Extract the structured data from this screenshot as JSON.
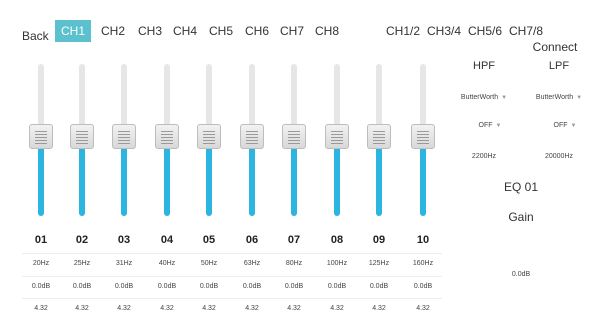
{
  "nav": {
    "back_label": "Back",
    "connect_label": "Connect"
  },
  "tabs": [
    "CH1",
    "CH2",
    "CH3",
    "CH4",
    "CH5",
    "CH6",
    "CH7",
    "CH8",
    "CH1/2",
    "CH3/4",
    "CH5/6",
    "CH7/8"
  ],
  "active_tab": "CH1",
  "bands": [
    {
      "num": "01",
      "freq": "20Hz",
      "gain": "0.0dB",
      "q": "4.32",
      "level": 0.52
    },
    {
      "num": "02",
      "freq": "25Hz",
      "gain": "0.0dB",
      "q": "4.32",
      "level": 0.52
    },
    {
      "num": "03",
      "freq": "31Hz",
      "gain": "0.0dB",
      "q": "4.32",
      "level": 0.52
    },
    {
      "num": "04",
      "freq": "40Hz",
      "gain": "0.0dB",
      "q": "4.32",
      "level": 0.52
    },
    {
      "num": "05",
      "freq": "50Hz",
      "gain": "0.0dB",
      "q": "4.32",
      "level": 0.52
    },
    {
      "num": "06",
      "freq": "63Hz",
      "gain": "0.0dB",
      "q": "4.32",
      "level": 0.52
    },
    {
      "num": "07",
      "freq": "80Hz",
      "gain": "0.0dB",
      "q": "4.32",
      "level": 0.52
    },
    {
      "num": "08",
      "freq": "100Hz",
      "gain": "0.0dB",
      "q": "4.32",
      "level": 0.52
    },
    {
      "num": "09",
      "freq": "125Hz",
      "gain": "0.0dB",
      "q": "4.32",
      "level": 0.52
    },
    {
      "num": "10",
      "freq": "160Hz",
      "gain": "0.0dB",
      "q": "4.32",
      "level": 0.52
    }
  ],
  "filters": {
    "hpf": {
      "label": "HPF",
      "type": "ButterWorth",
      "slope": "OFF",
      "freq": "2200Hz"
    },
    "lpf": {
      "label": "LPF",
      "type": "ButterWorth",
      "slope": "OFF",
      "freq": "20000Hz"
    }
  },
  "eq_name": "EQ 01",
  "gain_label": "Gain",
  "gain_value": "0.0dB",
  "colors": {
    "accent": "#5bc1cf",
    "slider_fill": "#2bb5e0",
    "track": "#e6e6e6"
  },
  "icons": {
    "dropdown": "triangle-down-icon",
    "thumb": "slider-thumb-icon"
  }
}
